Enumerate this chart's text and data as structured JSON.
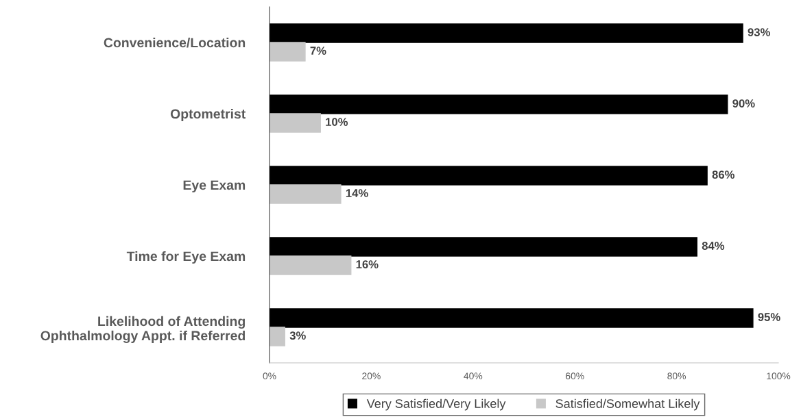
{
  "chart_data": {
    "type": "bar",
    "orientation": "horizontal",
    "categories": [
      "Convenience/Location",
      "Optometrist",
      "Eye Exam",
      "Time for Eye Exam",
      "Likelihood of Attending\nOphthalmology Appt. if Referred"
    ],
    "series": [
      {
        "name": "Very Satisfied/Very Likely",
        "color": "#000000",
        "values": [
          93,
          90,
          86,
          84,
          95
        ],
        "value_labels": [
          "93%",
          "90%",
          "86%",
          "84%",
          "95%"
        ]
      },
      {
        "name": "Satisfied/Somewhat Likely",
        "color": "#c8c8c8",
        "values": [
          7,
          10,
          14,
          16,
          3
        ],
        "value_labels": [
          "7%",
          "10%",
          "14%",
          "16%",
          "3%"
        ]
      }
    ],
    "xlim": [
      0,
      100
    ],
    "xticks": [
      {
        "value": 0,
        "label": "0%"
      },
      {
        "value": 20,
        "label": "20%"
      },
      {
        "value": 40,
        "label": "40%"
      },
      {
        "value": 60,
        "label": "60%"
      },
      {
        "value": 80,
        "label": "80%"
      },
      {
        "value": 100,
        "label": "100%"
      }
    ],
    "grid": false,
    "legend": "bottom"
  }
}
